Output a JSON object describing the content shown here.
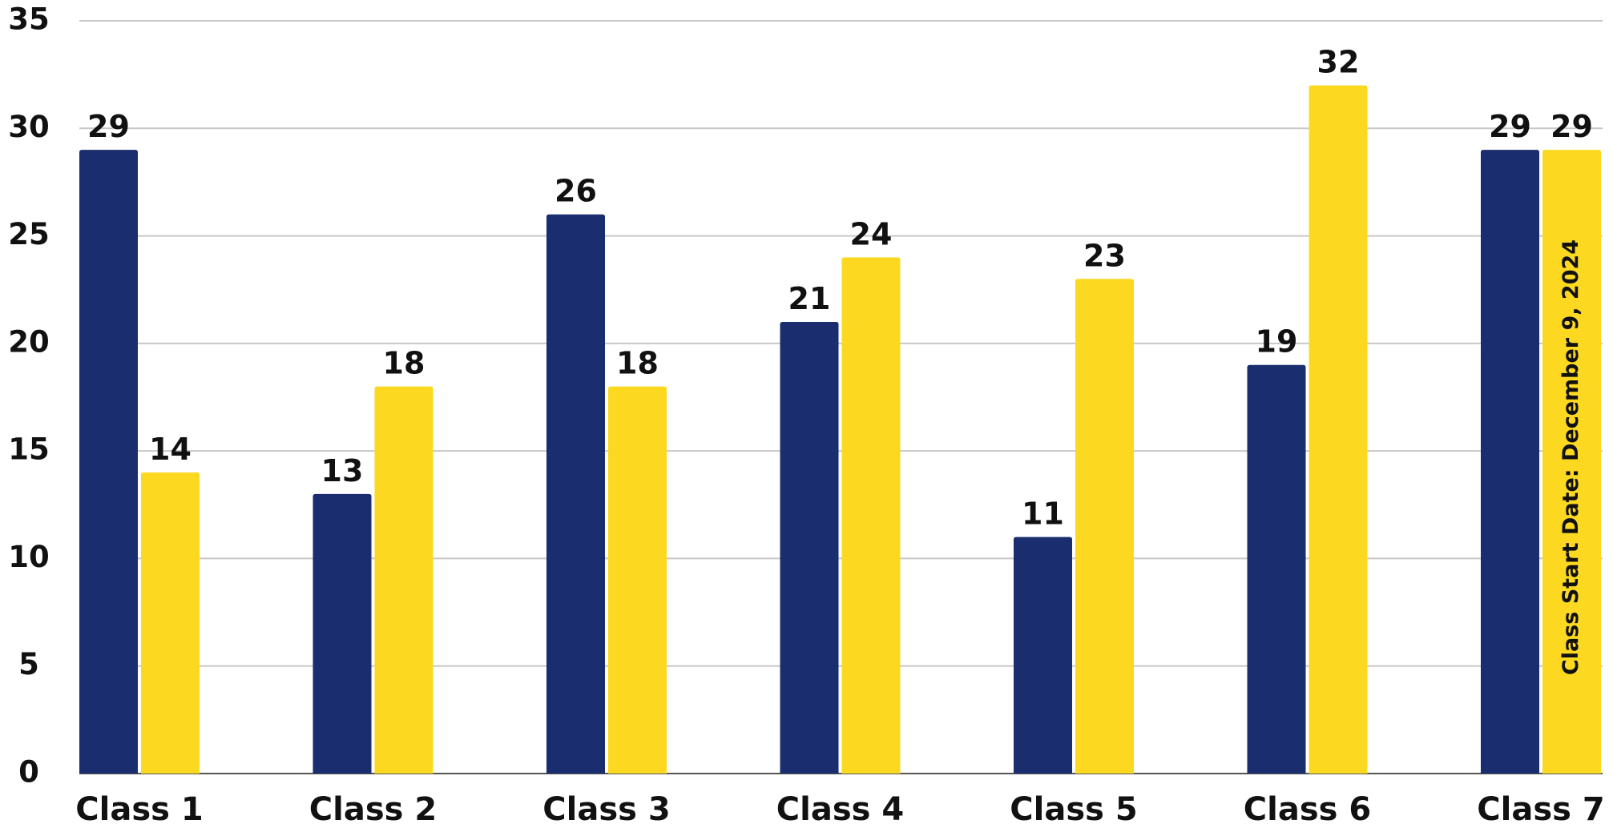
{
  "chart_data": {
    "type": "bar",
    "categories": [
      "Class 1",
      "Class 2",
      "Class 3",
      "Class 4",
      "Class 5",
      "Class 6",
      "Class 7"
    ],
    "series": [
      {
        "color": "#1a2d6e",
        "values": [
          29,
          13,
          26,
          21,
          11,
          19,
          29
        ]
      },
      {
        "color": "#fcd920",
        "values": [
          14,
          18,
          18,
          24,
          23,
          32,
          29
        ]
      }
    ],
    "ylim": [
      0,
      35
    ],
    "yticks": [
      0,
      5,
      10,
      15,
      20,
      25,
      30,
      35
    ],
    "grid": true,
    "annotation": "Class Start Date: December 9, 2024"
  }
}
